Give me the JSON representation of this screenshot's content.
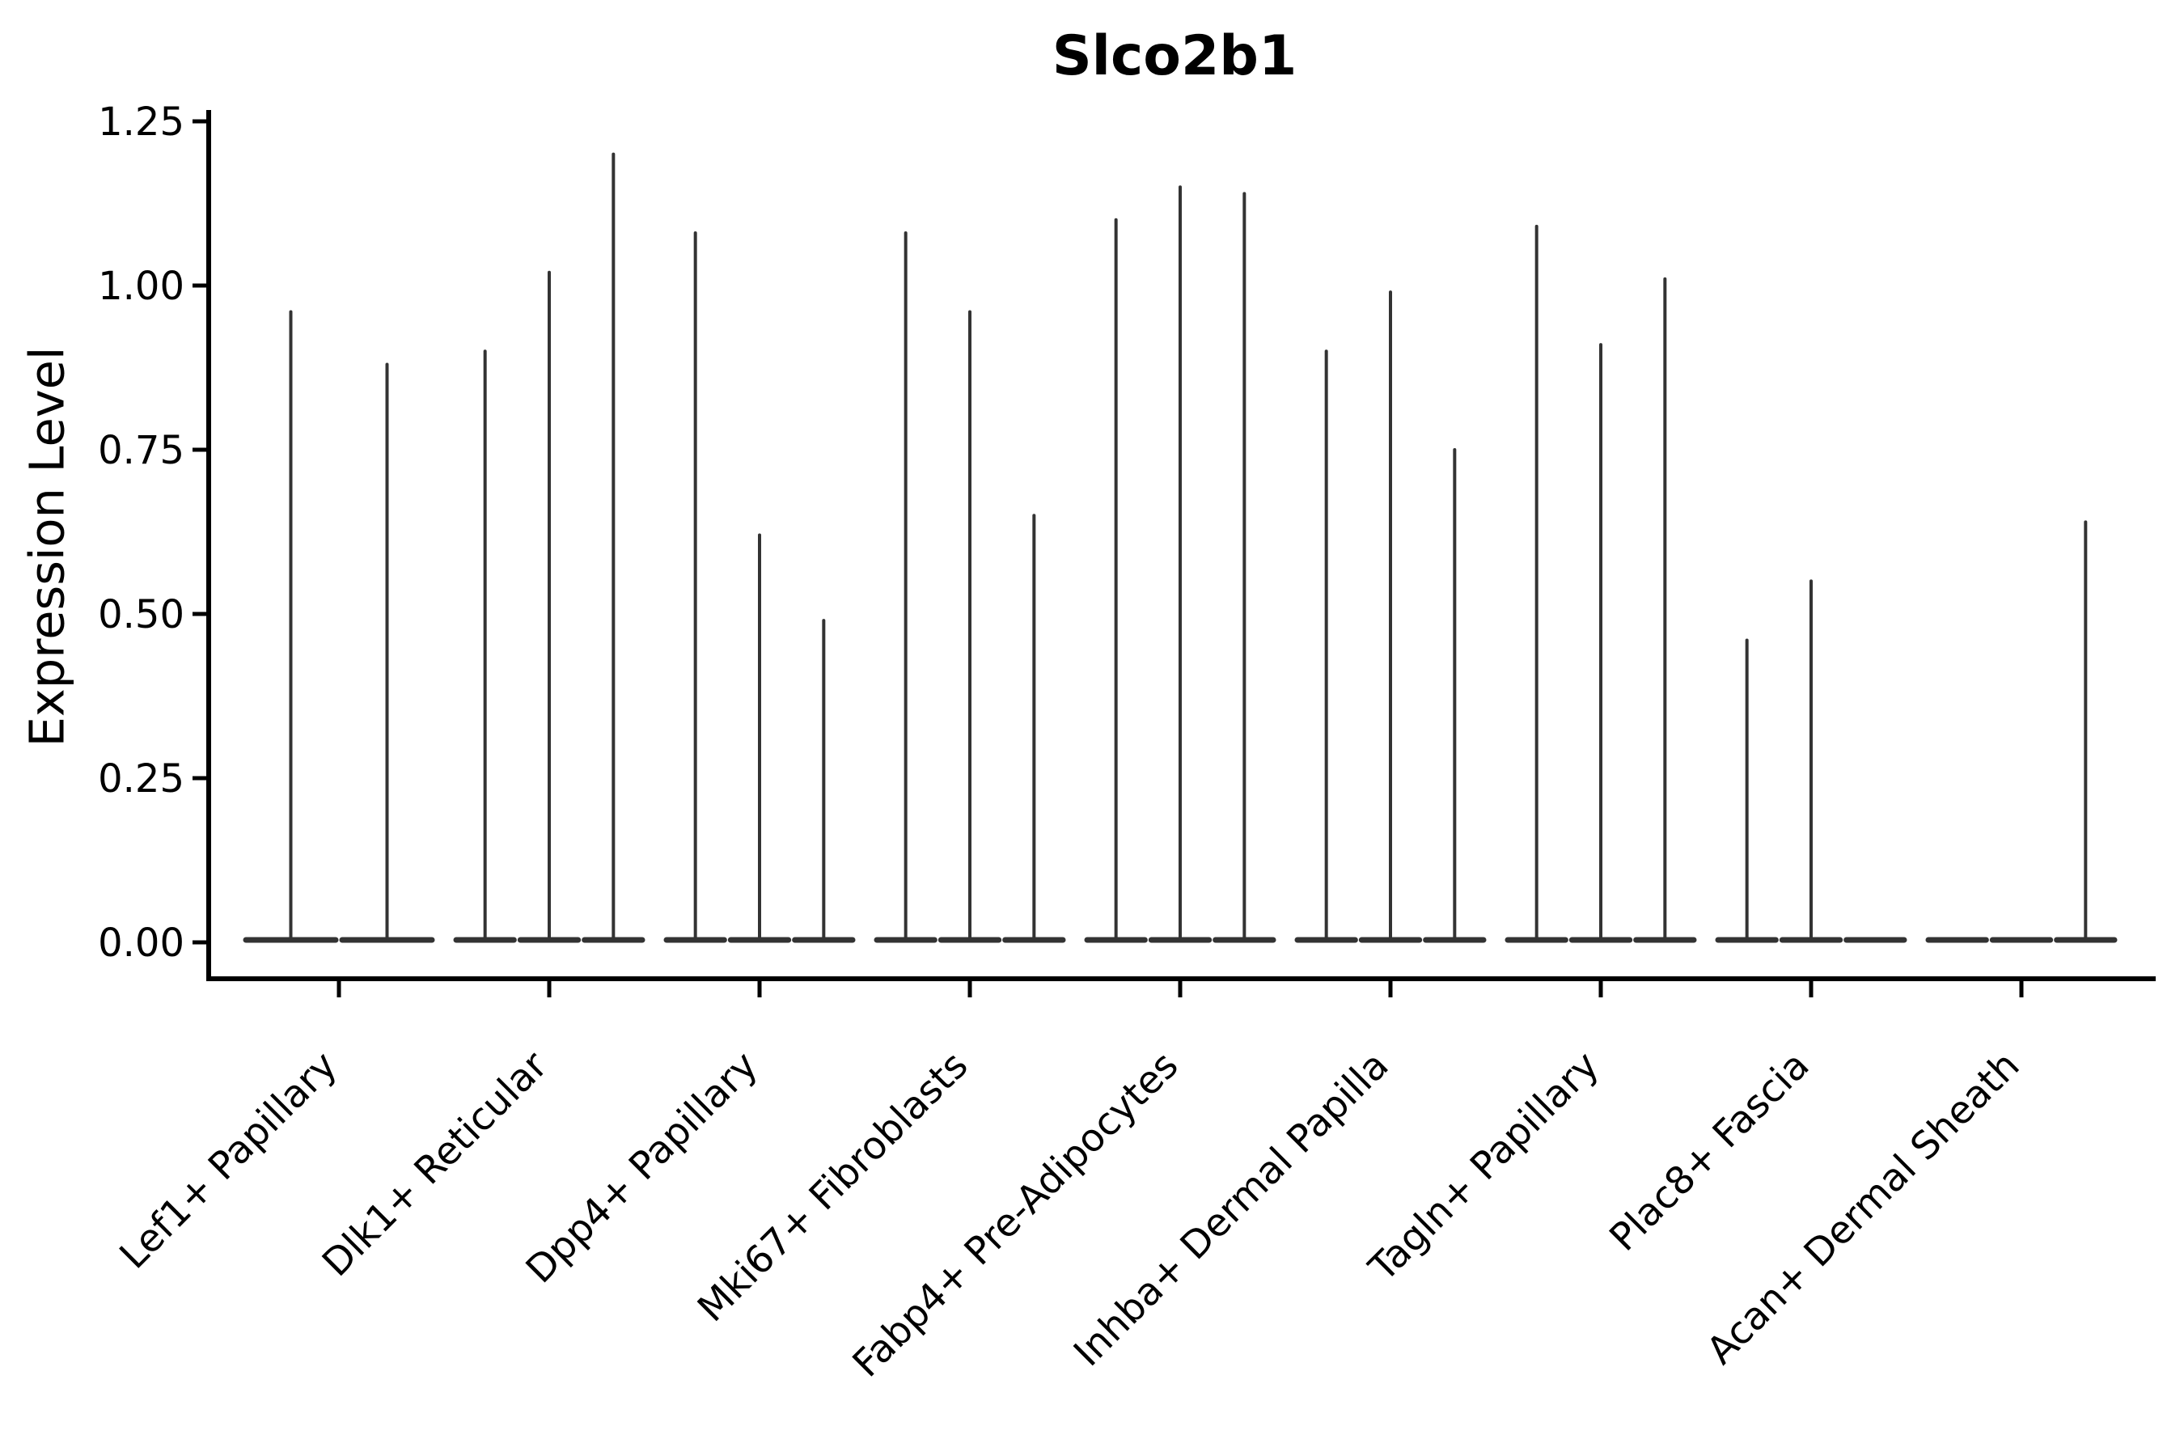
{
  "figure": {
    "title": "Slco2b1",
    "ylabel": "Expression Level"
  },
  "chart_data": {
    "type": "violin",
    "title": "Slco2b1",
    "xlabel": "",
    "ylabel": "Expression Level",
    "ylim": [
      0,
      1.25
    ],
    "yticks": [
      0.0,
      0.25,
      0.5,
      0.75,
      1.0,
      1.25
    ],
    "ytick_labels": [
      "0.00",
      "0.25",
      "0.50",
      "0.75",
      "1.00",
      "1.25"
    ],
    "grid": false,
    "legend": "none",
    "violin_color": "#333333",
    "axis_color": "#000000",
    "categories": [
      "Lef1+ Papillary",
      "Dlk1+ Reticular",
      "Dpp4+ Papillary",
      "Mki67+ Fibroblasts",
      "Fabp4+ Pre-Adipocytes",
      "Inhba+ Dermal Papilla",
      "Tagln+ Papillary",
      "Plac8+ Fascia",
      "Acan+ Dermal Sheath"
    ],
    "groups": [
      {
        "category": "Lef1+ Papillary",
        "violin_max_values": [
          0.96,
          0.88
        ]
      },
      {
        "category": "Dlk1+ Reticular",
        "violin_max_values": [
          0.9,
          1.02,
          1.2
        ]
      },
      {
        "category": "Dpp4+ Papillary",
        "violin_max_values": [
          1.08,
          0.62,
          0.49
        ]
      },
      {
        "category": "Mki67+ Fibroblasts",
        "violin_max_values": [
          1.08,
          0.96,
          0.65
        ]
      },
      {
        "category": "Fabp4+ Pre-Adipocytes",
        "violin_max_values": [
          1.1,
          1.15,
          1.14
        ]
      },
      {
        "category": "Inhba+ Dermal Papilla",
        "violin_max_values": [
          0.9,
          0.99,
          0.75
        ]
      },
      {
        "category": "Tagln+ Papillary",
        "violin_max_values": [
          1.09,
          0.91,
          1.01
        ]
      },
      {
        "category": "Plac8+ Fascia",
        "violin_max_values": [
          0.46,
          0.55,
          0
        ]
      },
      {
        "category": "Acan+ Dermal Sheath",
        "violin_max_values": [
          0,
          0,
          0.64
        ]
      }
    ]
  }
}
